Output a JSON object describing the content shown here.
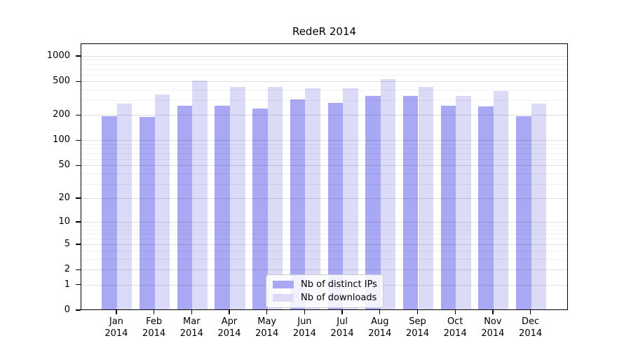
{
  "figure": {
    "title": "RedeR 2014"
  },
  "chart_data": {
    "type": "bar",
    "title": "RedeR 2014",
    "categories": [
      "Jan 2014",
      "Feb 2014",
      "Mar 2014",
      "Apr 2014",
      "May 2014",
      "Jun 2014",
      "Jul 2014",
      "Aug 2014",
      "Sep 2014",
      "Oct 2014",
      "Nov 2014",
      "Dec 2014"
    ],
    "month_labels": [
      "Jan",
      "Feb",
      "Mar",
      "Apr",
      "May",
      "Jun",
      "Jul",
      "Aug",
      "Sep",
      "Oct",
      "Nov",
      "Dec"
    ],
    "year_label": "2014",
    "series": [
      {
        "name": "Nb of distinct IPs",
        "color": "#a8a8f4",
        "values": [
          190,
          185,
          255,
          255,
          235,
          300,
          275,
          330,
          330,
          255,
          250,
          190
        ]
      },
      {
        "name": "Nb of downloads",
        "color": "#dbdbf8",
        "values": [
          270,
          345,
          505,
          425,
          425,
          410,
          410,
          520,
          425,
          330,
          380,
          270
        ]
      }
    ],
    "yscale": "log10(value+1)",
    "ylim": [
      0,
      1400
    ],
    "y_ticks": [
      0,
      1,
      2,
      5,
      10,
      20,
      50,
      100,
      200,
      500,
      1000
    ],
    "grid": {
      "minor_lines": [
        3,
        4,
        6,
        7,
        8,
        9,
        30,
        40,
        60,
        70,
        80,
        90,
        300,
        400,
        600,
        700,
        800,
        900
      ],
      "drawn_over_bars": true
    },
    "legend": {
      "position": "inside-bottom-center",
      "items": [
        "Nb of distinct IPs",
        "Nb of downloads"
      ]
    }
  }
}
